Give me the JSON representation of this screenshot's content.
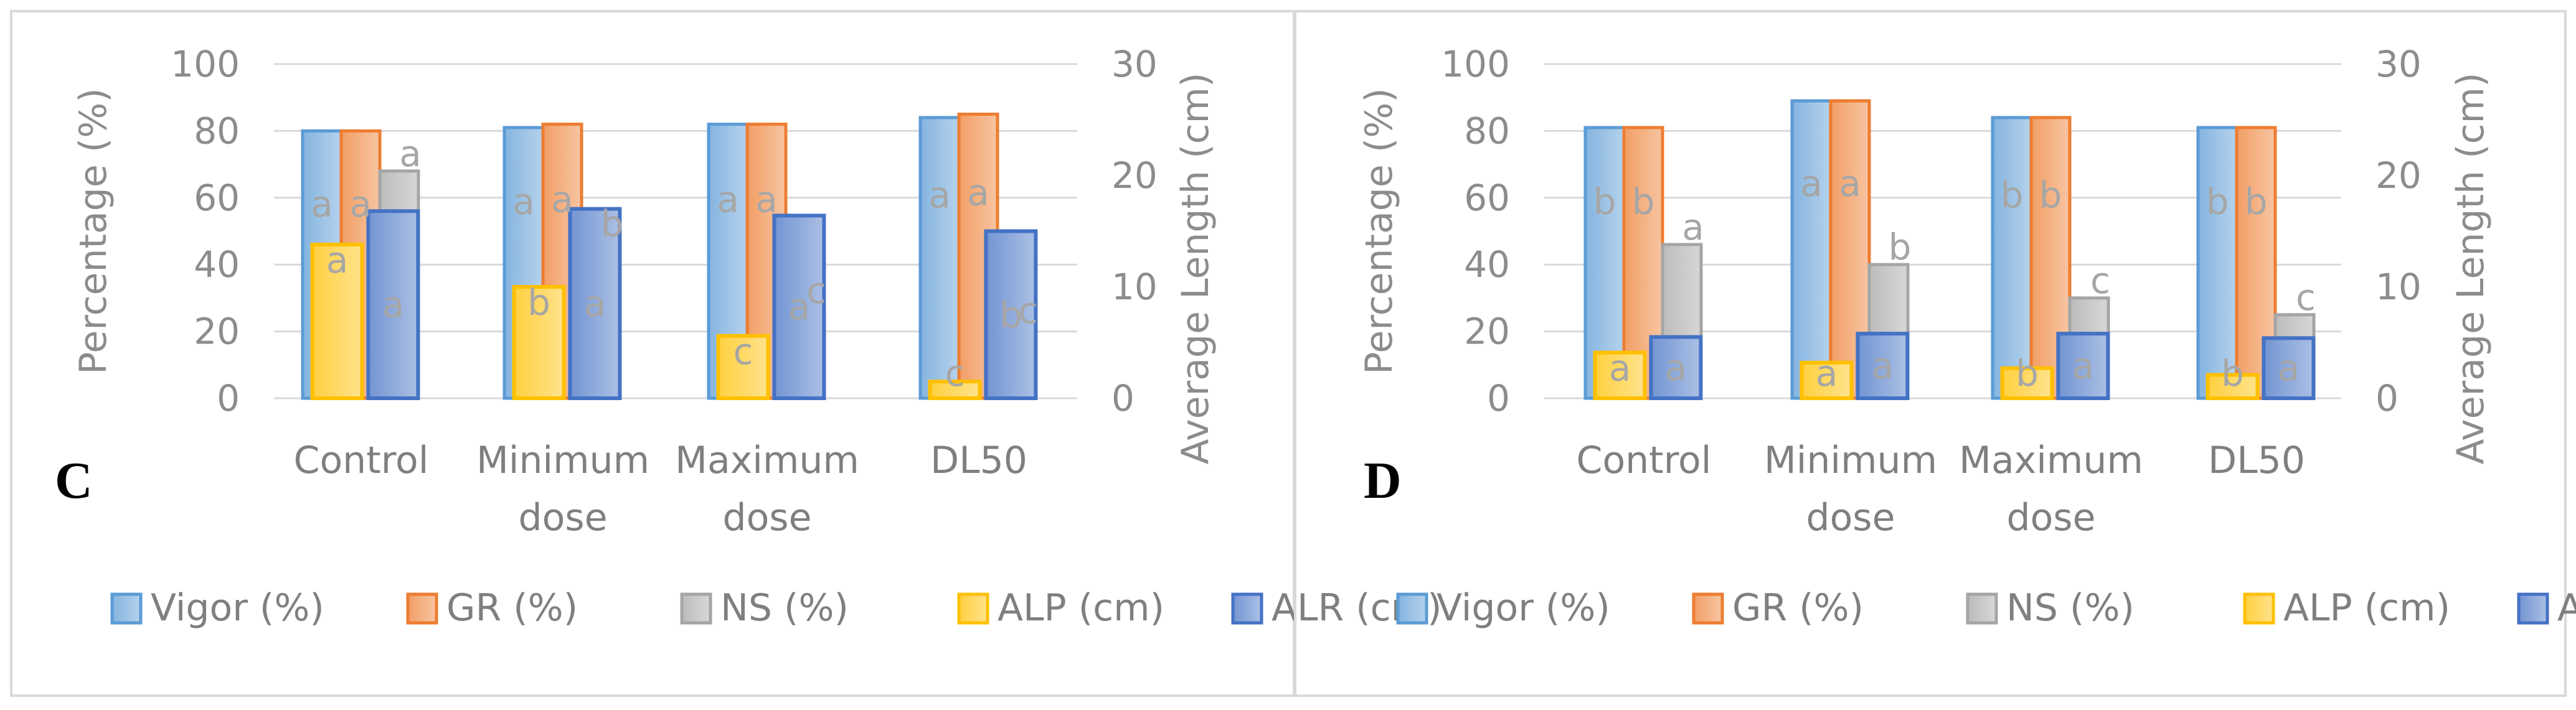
{
  "chart_data": [
    {
      "panel_label": "C",
      "type": "bar",
      "categories": [
        [
          "Control"
        ],
        [
          "Minimum",
          "dose"
        ],
        [
          "Maximum",
          "dose"
        ],
        [
          "DL50"
        ]
      ],
      "ylabel": "Percentage (%)",
      "y2label": "Average Length (cm)",
      "ylim": [
        0,
        100
      ],
      "y2lim": [
        0,
        30
      ],
      "yticks": [
        "0",
        "20",
        "40",
        "60",
        "80",
        "100"
      ],
      "y2ticks": [
        "0",
        "10",
        "20",
        "30"
      ],
      "grid": true,
      "legend_position": "bottom",
      "series": [
        {
          "name": "Vigor (%)",
          "axis": "left",
          "color": "#5b9bd5",
          "values": [
            80,
            81,
            82,
            84
          ],
          "letters": [
            "a",
            "a",
            "a",
            "a"
          ]
        },
        {
          "name": "GR (%)",
          "axis": "left",
          "color": "#ed7d31",
          "values": [
            80,
            82,
            82,
            85
          ],
          "letters": [
            "a",
            "a",
            "a",
            "a"
          ]
        },
        {
          "name": "NS (%)",
          "axis": "left",
          "color": "#a5a5a5",
          "values": [
            68,
            47,
            27,
            21
          ],
          "letters": [
            "a",
            "b",
            "c",
            "c"
          ]
        },
        {
          "name": "ALP (cm)",
          "axis": "right",
          "color": "#ffc000",
          "values": [
            13.8,
            10,
            5.6,
            1.5
          ],
          "letters": [
            "a",
            "b",
            "c",
            "c"
          ]
        },
        {
          "name": "ALR (cm)",
          "axis": "right",
          "color": "#4472c4",
          "values": [
            16.8,
            17,
            16.4,
            15
          ],
          "letters": [
            "a",
            "a",
            "a",
            "b"
          ]
        }
      ]
    },
    {
      "panel_label": "D",
      "type": "bar",
      "categories": [
        [
          "Control"
        ],
        [
          "Minimum",
          "dose"
        ],
        [
          "Maximum",
          "dose"
        ],
        [
          "DL50"
        ]
      ],
      "ylabel": "Percentage (%)",
      "y2label": "Average Length (cm)",
      "ylim": [
        0,
        100
      ],
      "y2lim": [
        0,
        30
      ],
      "yticks": [
        "0",
        "20",
        "40",
        "60",
        "80",
        "100"
      ],
      "y2ticks": [
        "0",
        "10",
        "20",
        "30"
      ],
      "grid": true,
      "legend_position": "bottom",
      "series": [
        {
          "name": "Vigor (%)",
          "axis": "left",
          "color": "#5b9bd5",
          "values": [
            81,
            89,
            84,
            81
          ],
          "letters": [
            "b",
            "a",
            "b",
            "b"
          ]
        },
        {
          "name": "GR (%)",
          "axis": "left",
          "color": "#ed7d31",
          "values": [
            81,
            89,
            84,
            81
          ],
          "letters": [
            "b",
            "a",
            "b",
            "b"
          ]
        },
        {
          "name": "NS (%)",
          "axis": "left",
          "color": "#a5a5a5",
          "values": [
            46,
            40,
            30,
            25
          ],
          "letters": [
            "a",
            "b",
            "c",
            "c"
          ]
        },
        {
          "name": "ALP (cm)",
          "axis": "right",
          "color": "#ffc000",
          "values": [
            4.1,
            3.2,
            2.7,
            2.1
          ],
          "letters": [
            "a",
            "a",
            "b",
            "b"
          ]
        },
        {
          "name": "ALR (cm)",
          "axis": "right",
          "color": "#4472c4",
          "values": [
            5.5,
            5.8,
            5.8,
            5.4
          ],
          "letters": [
            "a",
            "a",
            "a",
            "a"
          ]
        }
      ]
    }
  ]
}
